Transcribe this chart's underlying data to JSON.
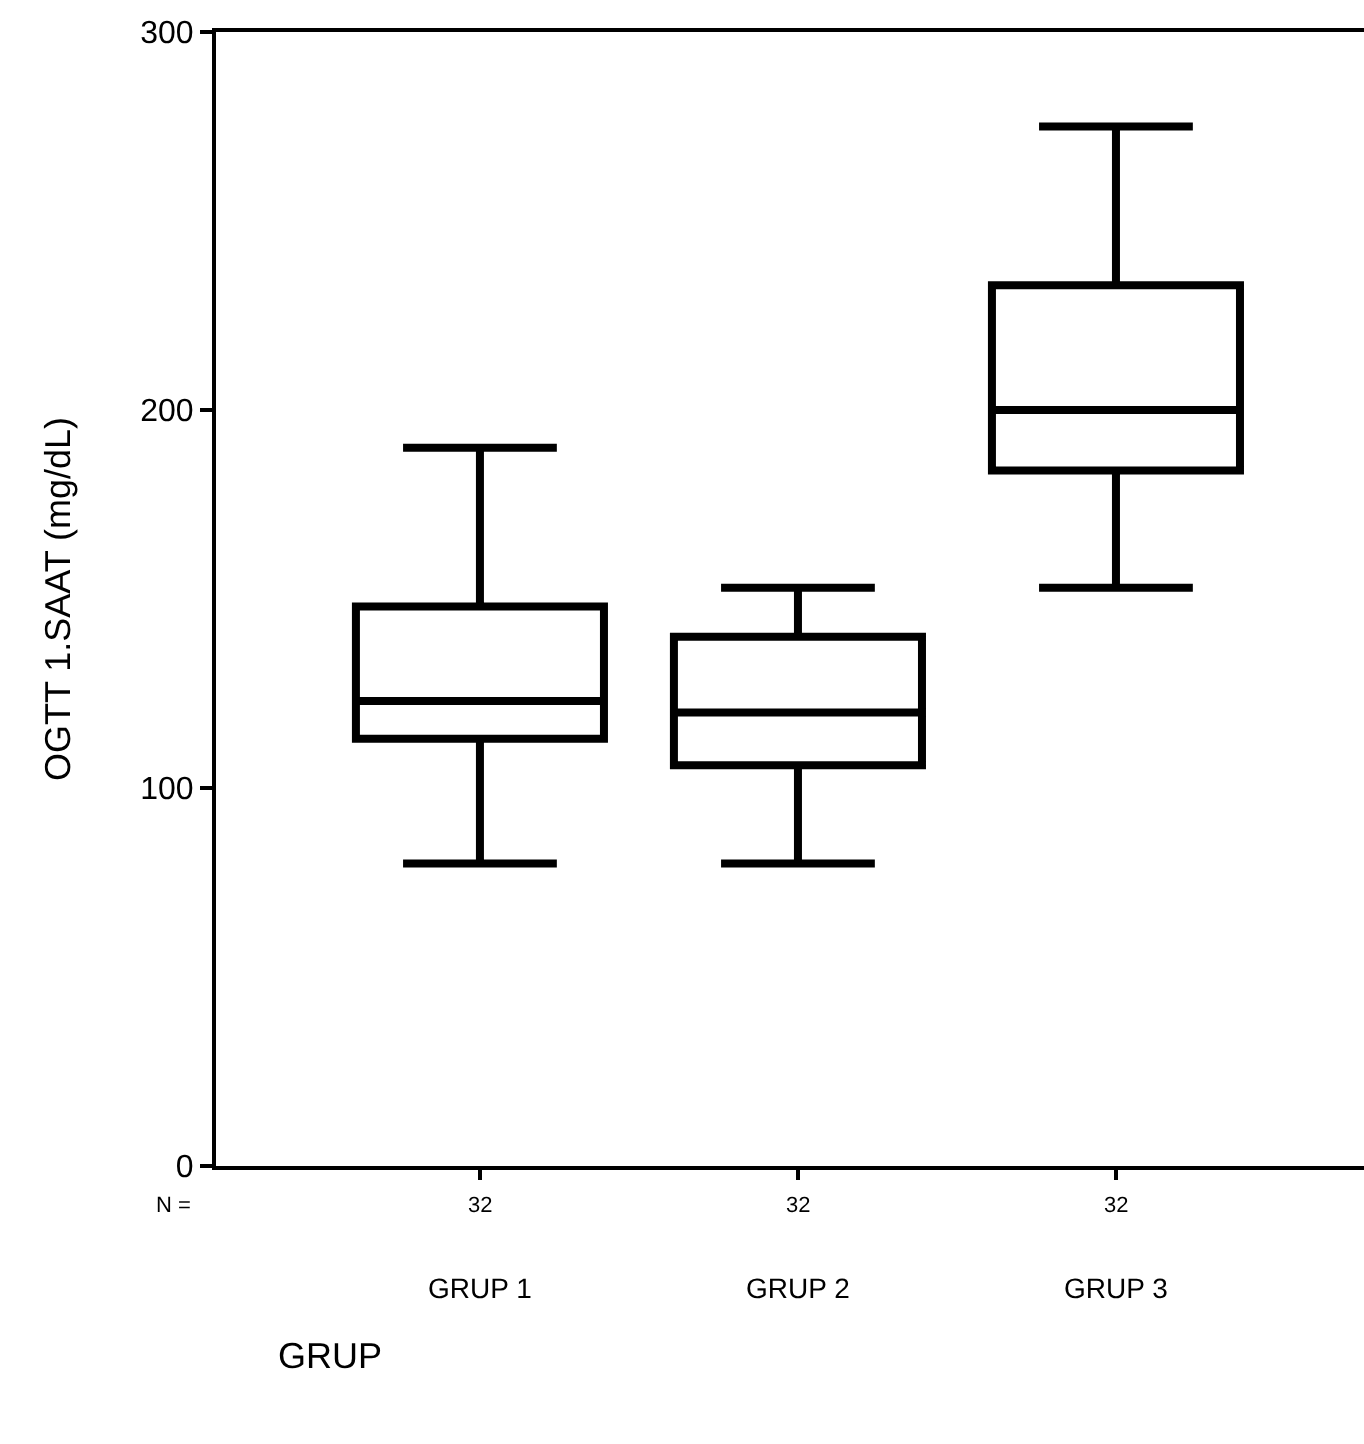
{
  "chart_data": {
    "type": "box",
    "ylabel": "OGTT 1.SAAT (mg/dL)",
    "xlabel": "GRUP",
    "categories": [
      "GRUP 1",
      "GRUP 2",
      "GRUP 3"
    ],
    "boxes": [
      {
        "low": 80,
        "q1": 113,
        "median": 123,
        "q3": 148,
        "high": 190
      },
      {
        "low": 80,
        "q1": 106,
        "median": 120,
        "q3": 140,
        "high": 153
      },
      {
        "low": 153,
        "q1": 184,
        "median": 200,
        "q3": 233,
        "high": 275
      }
    ],
    "color": "#000000",
    "ylim": [
      0,
      300
    ],
    "yticks": [
      0,
      100,
      200,
      300
    ],
    "grid": false,
    "annotations": [
      "N =",
      {
        "text": "32",
        "x": "GRUP 1"
      },
      {
        "text": "32",
        "x": "GRUP 2"
      },
      {
        "text": "32",
        "x": "GRUP 3"
      }
    ]
  }
}
